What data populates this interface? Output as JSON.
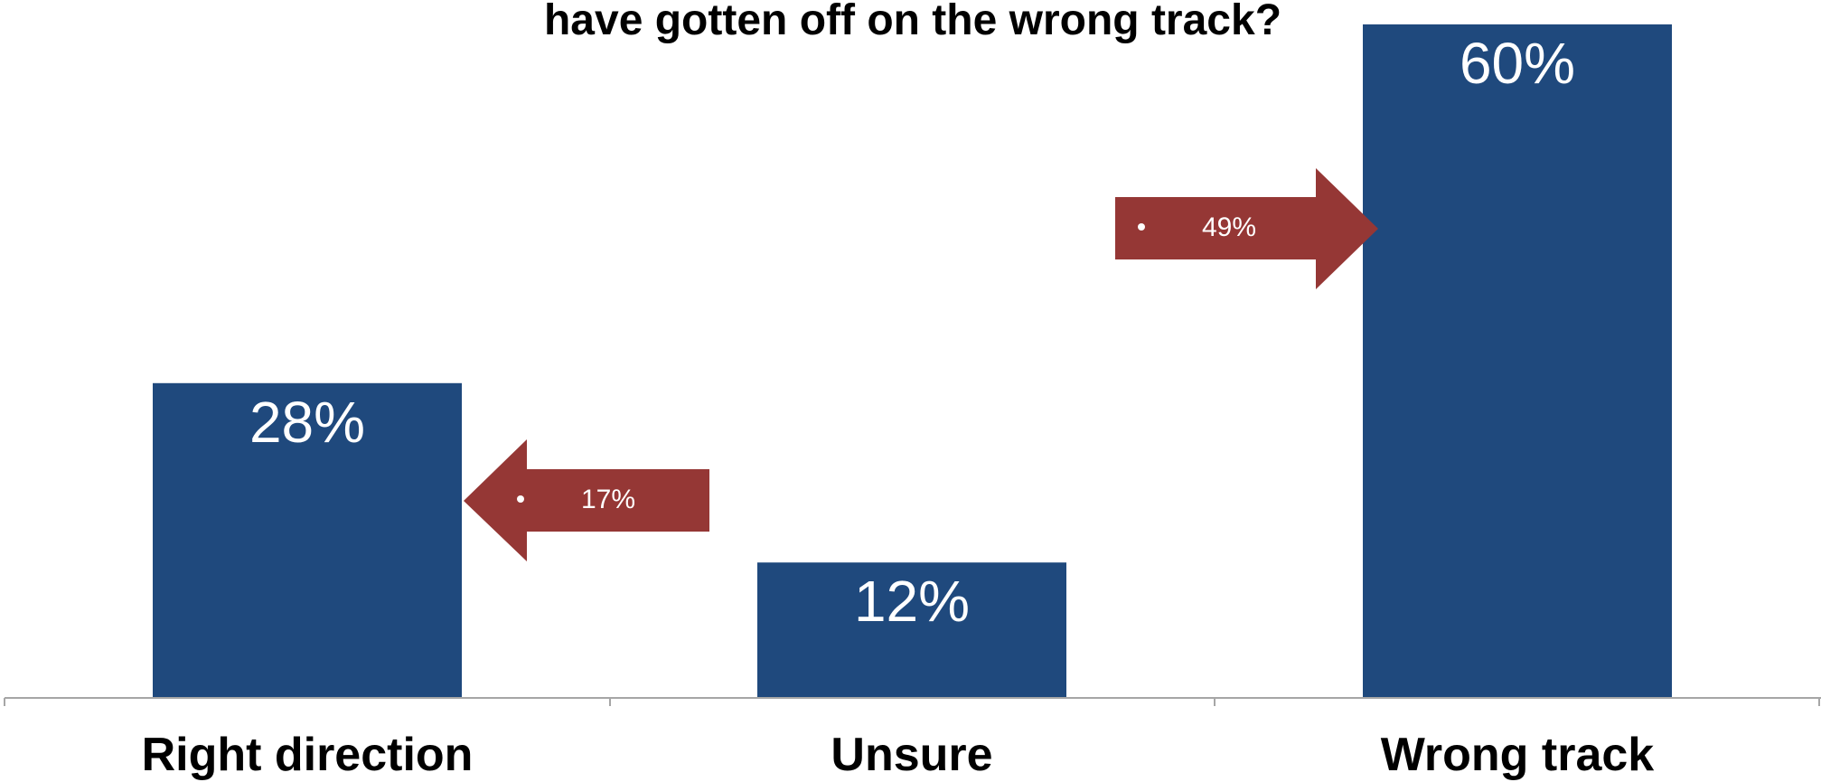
{
  "title": "have gotten off on the wrong track?",
  "colors": {
    "bar": "#1f497d",
    "arrow": "#953735",
    "axis": "#a6a6a6"
  },
  "chart_data": {
    "type": "bar",
    "title": "have gotten off on the wrong track?",
    "categories": [
      "Right direction",
      "Unsure",
      "Wrong track"
    ],
    "values": [
      28,
      12,
      60
    ],
    "value_labels": [
      "28%",
      "12%",
      "60%"
    ],
    "xlabel": "",
    "ylabel": "",
    "ylim": [
      0,
      60
    ],
    "grid": false,
    "legend": "none",
    "annotations": [
      {
        "type": "arrow",
        "direction": "left",
        "text": "17%",
        "points_to": "Right direction",
        "value": 17
      },
      {
        "type": "arrow",
        "direction": "right",
        "text": "49%",
        "points_to": "Wrong track",
        "value": 49
      }
    ]
  }
}
